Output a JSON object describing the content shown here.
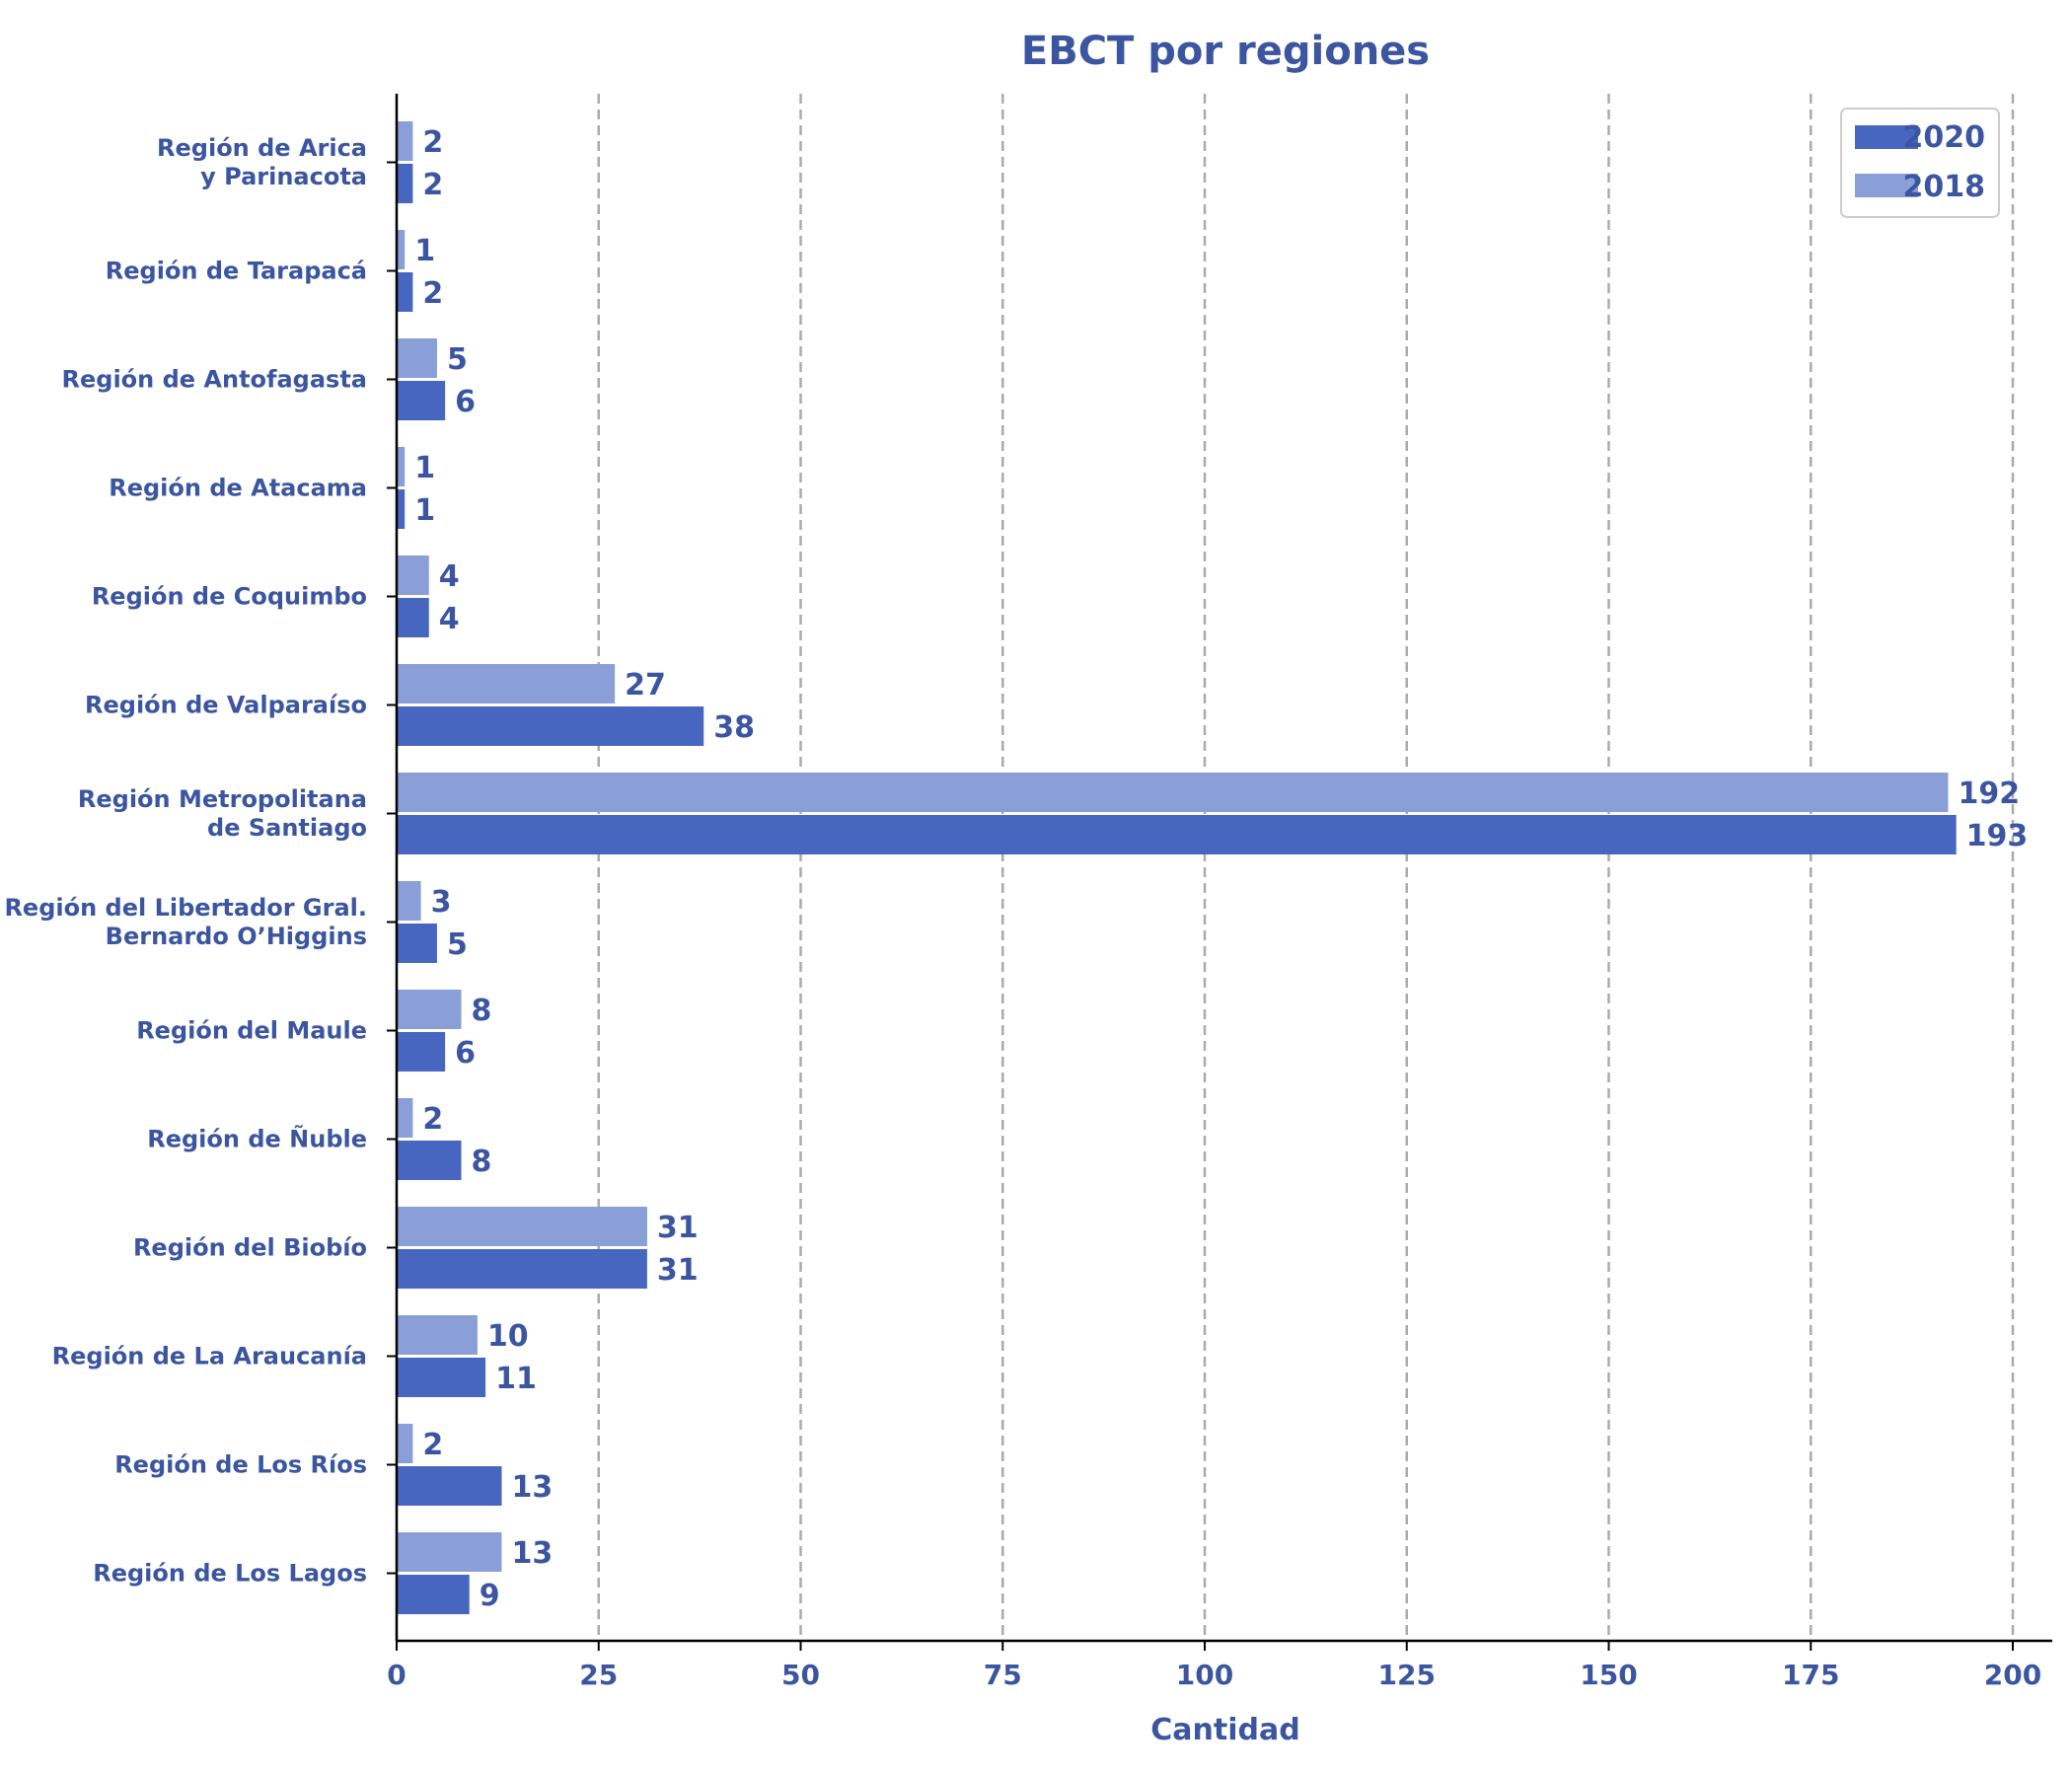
{
  "chart_data": {
    "type": "bar",
    "orientation": "horizontal",
    "title": "EBCT por regiones",
    "xlabel": "Cantidad",
    "ylabel": "",
    "xlim": [
      0,
      205
    ],
    "xticks": [
      0,
      25,
      50,
      75,
      100,
      125,
      150,
      175,
      200
    ],
    "grid": "vertical-dashed",
    "legend_position": "top-right",
    "categories": [
      [
        "Región de Arica",
        "y Parinacota"
      ],
      [
        "Región de Tarapacá"
      ],
      [
        "Región de Antofagasta"
      ],
      [
        "Región de Atacama"
      ],
      [
        "Región de Coquimbo"
      ],
      [
        "Región de Valparaíso"
      ],
      [
        "Región Metropolitana",
        "de Santiago"
      ],
      [
        "Región del Libertador Gral.",
        "Bernardo O’Higgins"
      ],
      [
        "Región del Maule"
      ],
      [
        "Región de Ñuble"
      ],
      [
        "Región del Biobío"
      ],
      [
        "Región de La Araucanía"
      ],
      [
        "Región de Los Ríos"
      ],
      [
        "Región de Los Lagos"
      ]
    ],
    "series": [
      {
        "name": "2020",
        "color": "#4766c0",
        "values": [
          2,
          2,
          6,
          1,
          4,
          38,
          193,
          5,
          6,
          8,
          31,
          11,
          13,
          9
        ]
      },
      {
        "name": "2018",
        "color": "#8a9fd8",
        "values": [
          2,
          1,
          5,
          1,
          4,
          27,
          192,
          3,
          8,
          2,
          31,
          10,
          2,
          13
        ]
      }
    ],
    "text_color": "#3b55a0"
  }
}
